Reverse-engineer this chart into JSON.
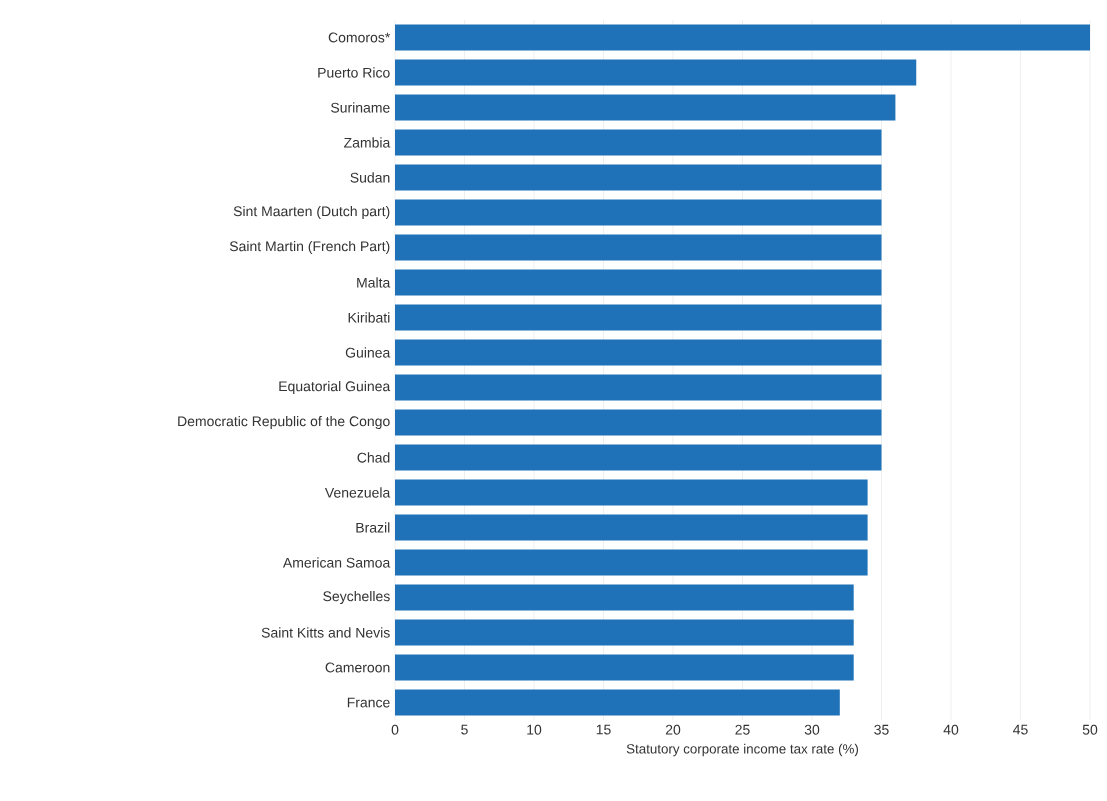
{
  "chart_data": {
    "type": "bar",
    "orientation": "horizontal",
    "xlabel": "Statutory corporate income tax rate (%)",
    "categories": [
      "Comoros*",
      "Puerto Rico",
      "Suriname",
      "Zambia",
      "Sudan",
      "Sint Maarten (Dutch part)",
      "Saint Martin (French Part)",
      "Malta",
      "Kiribati",
      "Guinea",
      "Equatorial Guinea",
      "Democratic Republic of the Congo",
      "Chad",
      "Venezuela",
      "Brazil",
      "American Samoa",
      "Seychelles",
      "Saint Kitts and Nevis",
      "Cameroon",
      "France"
    ],
    "values": [
      50,
      37.5,
      36,
      35,
      35,
      35,
      35,
      35,
      35,
      35,
      35,
      35,
      35,
      34,
      34,
      34,
      33,
      33,
      33,
      32
    ],
    "color": "#1f72b8",
    "xlim": [
      0,
      50
    ],
    "xticks": [
      0,
      5,
      10,
      15,
      20,
      25,
      30,
      35,
      40,
      45,
      50
    ],
    "grid": "x"
  }
}
